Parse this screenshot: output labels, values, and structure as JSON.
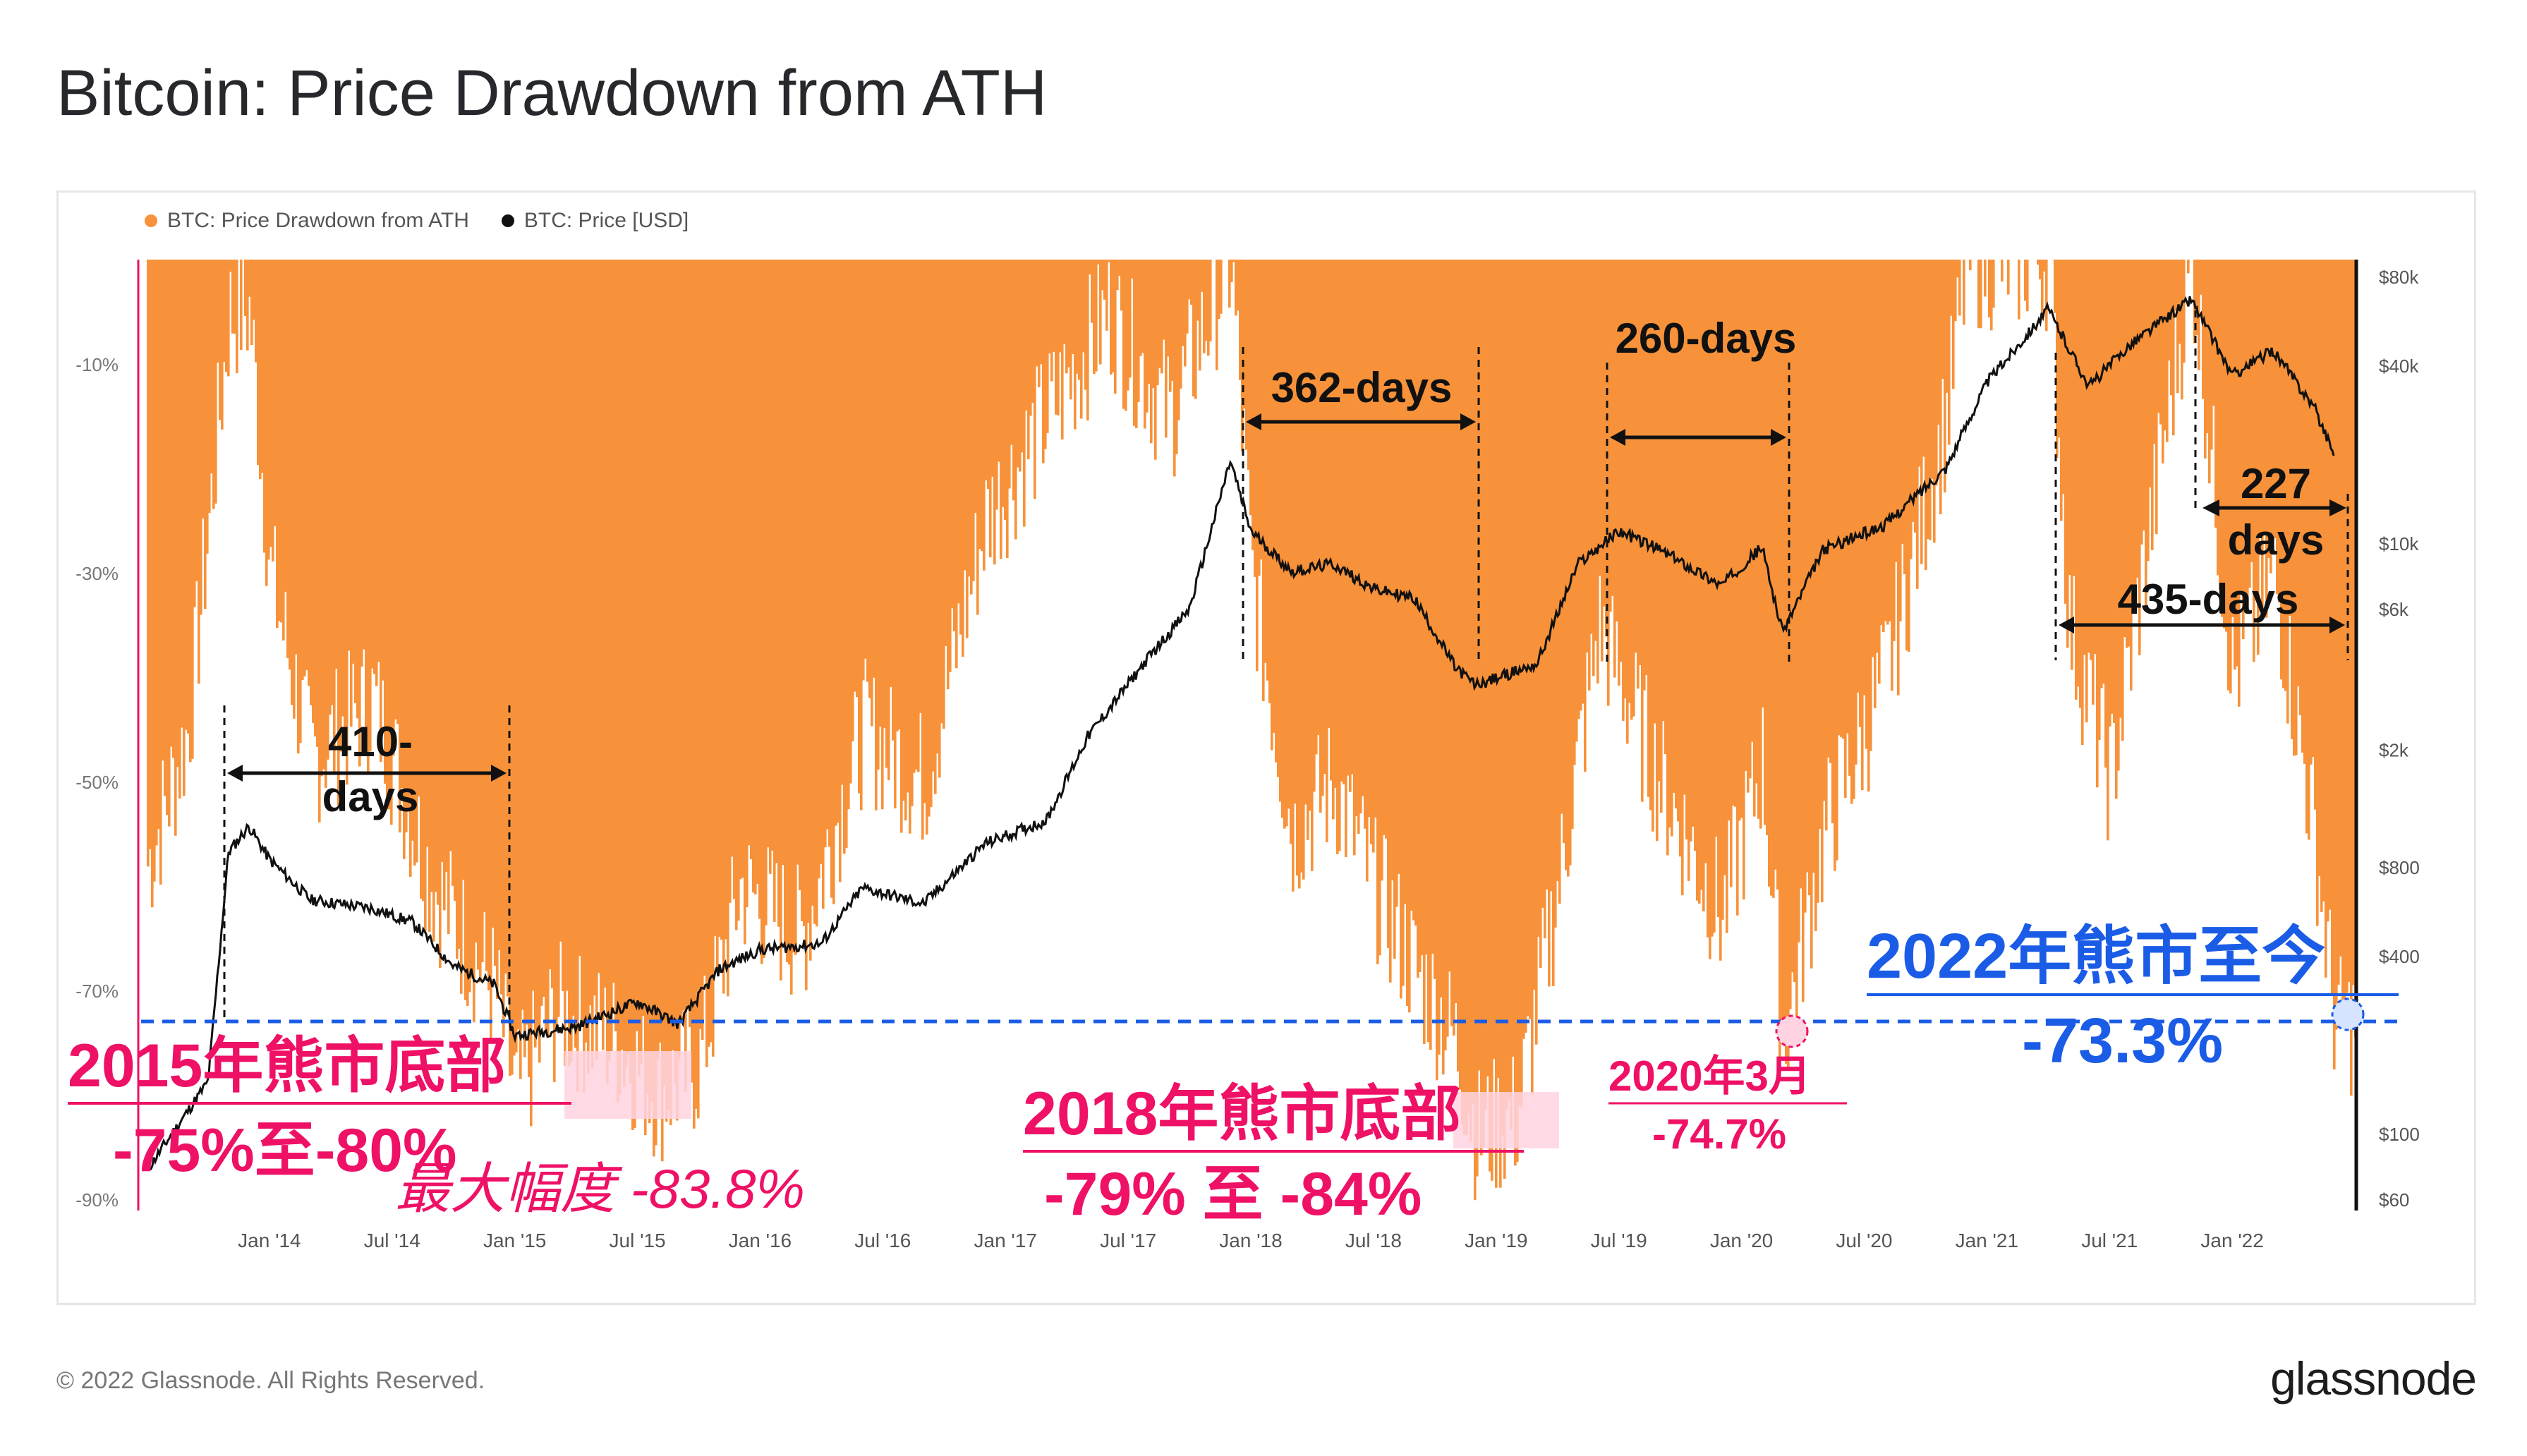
{
  "title": "Bitcoin: Price Drawdown from ATH",
  "legend": [
    {
      "label": "BTC: Price Drawdown from ATH",
      "color": "#f7923a"
    },
    {
      "label": "BTC: Price [USD]",
      "color": "#111111"
    }
  ],
  "footer": "© 2022 Glassnode. All Rights Reserved.",
  "brand": "glassnode",
  "colors": {
    "drawdown": "#f7923a",
    "price": "#111111",
    "pink": "#ee1166",
    "blue": "#1a5ce6",
    "annot": "#111111"
  },
  "chart_data": {
    "type": "area",
    "title": "Bitcoin: Price Drawdown from ATH",
    "left_axis": {
      "ticks": [
        "-10%",
        "-30%",
        "-50%",
        "-70%",
        "-90%"
      ],
      "values": [
        -10,
        -30,
        -50,
        -70,
        -90
      ],
      "range": [
        -90,
        0
      ]
    },
    "right_axis": {
      "scale": "log",
      "ticks": [
        "$80k",
        "$40k",
        "$10k",
        "$6k",
        "$2k",
        "$800",
        "$400",
        "$100",
        "$60"
      ],
      "values": [
        80000,
        40000,
        10000,
        6000,
        2000,
        800,
        400,
        100,
        60
      ],
      "range": [
        60,
        80000
      ]
    },
    "x_ticks": [
      "Jan '14",
      "Jul '14",
      "Jan '15",
      "Jul '15",
      "Jan '16",
      "Jul '16",
      "Jan '17",
      "Jul '17",
      "Jan '18",
      "Jul '18",
      "Jan '19",
      "Jul '19",
      "Jan '20",
      "Jul '20",
      "Jan '21",
      "Jul '21",
      "Jan '22"
    ],
    "x_range": [
      "2013-07",
      "2022-07"
    ],
    "series": [
      {
        "name": "BTC: Price Drawdown from ATH",
        "type": "area",
        "points": [
          [
            "2013-07",
            -58
          ],
          [
            "2013-09",
            -45
          ],
          [
            "2013-11",
            -5
          ],
          [
            "2013-12",
            -5
          ],
          [
            "2014-01",
            -30
          ],
          [
            "2014-03",
            -48
          ],
          [
            "2014-06",
            -42
          ],
          [
            "2014-09",
            -60
          ],
          [
            "2014-12",
            -70
          ],
          [
            "2015-01",
            -80
          ],
          [
            "2015-03",
            -72
          ],
          [
            "2015-06",
            -75
          ],
          [
            "2015-08",
            -80
          ],
          [
            "2015-10",
            -77
          ],
          [
            "2015-12",
            -60
          ],
          [
            "2016-03",
            -65
          ],
          [
            "2016-06",
            -45
          ],
          [
            "2016-09",
            -50
          ],
          [
            "2016-12",
            -25
          ],
          [
            "2017-03",
            -15
          ],
          [
            "2017-06",
            -5
          ],
          [
            "2017-09",
            -15
          ],
          [
            "2017-12",
            0
          ],
          [
            "2018-01",
            -30
          ],
          [
            "2018-03",
            -55
          ],
          [
            "2018-05",
            -50
          ],
          [
            "2018-07",
            -60
          ],
          [
            "2018-09",
            -68
          ],
          [
            "2018-11",
            -75
          ],
          [
            "2018-12",
            -84
          ],
          [
            "2019-02",
            -82
          ],
          [
            "2019-04",
            -60
          ],
          [
            "2019-06",
            -35
          ],
          [
            "2019-09",
            -50
          ],
          [
            "2019-12",
            -63
          ],
          [
            "2020-02",
            -48
          ],
          [
            "2020-03",
            -74.7
          ],
          [
            "2020-05",
            -55
          ],
          [
            "2020-08",
            -40
          ],
          [
            "2020-11",
            -15
          ],
          [
            "2020-12",
            0
          ],
          [
            "2021-02",
            0
          ],
          [
            "2021-04",
            0
          ],
          [
            "2021-05",
            -35
          ],
          [
            "2021-07",
            -50
          ],
          [
            "2021-09",
            -25
          ],
          [
            "2021-11",
            0
          ],
          [
            "2022-01",
            -40
          ],
          [
            "2022-03",
            -30
          ],
          [
            "2022-05",
            -55
          ],
          [
            "2022-06",
            -73.3
          ]
        ]
      },
      {
        "name": "BTC: Price [USD]",
        "type": "line",
        "points": [
          [
            "2013-07",
            75
          ],
          [
            "2013-10",
            150
          ],
          [
            "2013-11",
            900
          ],
          [
            "2013-12",
            1100
          ],
          [
            "2014-01",
            850
          ],
          [
            "2014-03",
            620
          ],
          [
            "2014-06",
            580
          ],
          [
            "2014-08",
            520
          ],
          [
            "2014-10",
            370
          ],
          [
            "2014-12",
            320
          ],
          [
            "2015-01",
            215
          ],
          [
            "2015-04",
            230
          ],
          [
            "2015-07",
            280
          ],
          [
            "2015-09",
            235
          ],
          [
            "2015-11",
            360
          ],
          [
            "2016-01",
            420
          ],
          [
            "2016-04",
            440
          ],
          [
            "2016-06",
            680
          ],
          [
            "2016-09",
            600
          ],
          [
            "2016-12",
            960
          ],
          [
            "2017-03",
            1150
          ],
          [
            "2017-05",
            2200
          ],
          [
            "2017-08",
            4100
          ],
          [
            "2017-10",
            6000
          ],
          [
            "2017-12",
            19000
          ],
          [
            "2018-01",
            11000
          ],
          [
            "2018-03",
            8000
          ],
          [
            "2018-05",
            8500
          ],
          [
            "2018-07",
            7000
          ],
          [
            "2018-09",
            6500
          ],
          [
            "2018-11",
            3800
          ],
          [
            "2018-12",
            3300
          ],
          [
            "2019-03",
            3900
          ],
          [
            "2019-05",
            8500
          ],
          [
            "2019-07",
            11000
          ],
          [
            "2019-09",
            9500
          ],
          [
            "2019-12",
            7200
          ],
          [
            "2020-02",
            9700
          ],
          [
            "2020-03",
            5000
          ],
          [
            "2020-05",
            9500
          ],
          [
            "2020-08",
            11500
          ],
          [
            "2020-11",
            18000
          ],
          [
            "2021-01",
            35000
          ],
          [
            "2021-04",
            62000
          ],
          [
            "2021-06",
            34000
          ],
          [
            "2021-08",
            47000
          ],
          [
            "2021-11",
            67000
          ],
          [
            "2022-01",
            37000
          ],
          [
            "2022-03",
            45000
          ],
          [
            "2022-05",
            29000
          ],
          [
            "2022-06",
            20000
          ]
        ]
      }
    ],
    "reference_line": {
      "value": -73.3,
      "style": "dashed",
      "color": "#1a5ce6"
    },
    "annotations": [
      {
        "label": "410-days",
        "from": "2013-12",
        "to": "2015-01"
      },
      {
        "label": "362-days",
        "from": "2017-12",
        "to": "2018-12"
      },
      {
        "label": "260-days",
        "from": "2019-06",
        "to": "2020-03"
      },
      {
        "label": "435-days",
        "from": "2021-04",
        "to": "2022-06"
      },
      {
        "label": "227 days",
        "from": "2021-11",
        "to": "2022-06"
      }
    ],
    "callouts": {
      "c2015_title": "2015年熊市底部",
      "c2015_range": "-75%至-80%",
      "c2015_max": "最大幅度 -83.8%",
      "c2018_title": "2018年熊市底部",
      "c2018_range": "-79% 至  -84%",
      "c2020_title": "2020年3月",
      "c2020_value": "-74.7%",
      "c2022_title": "2022年熊市至今",
      "c2022_value": "-73.3%"
    },
    "grid": false,
    "legend_position": "top-left"
  }
}
